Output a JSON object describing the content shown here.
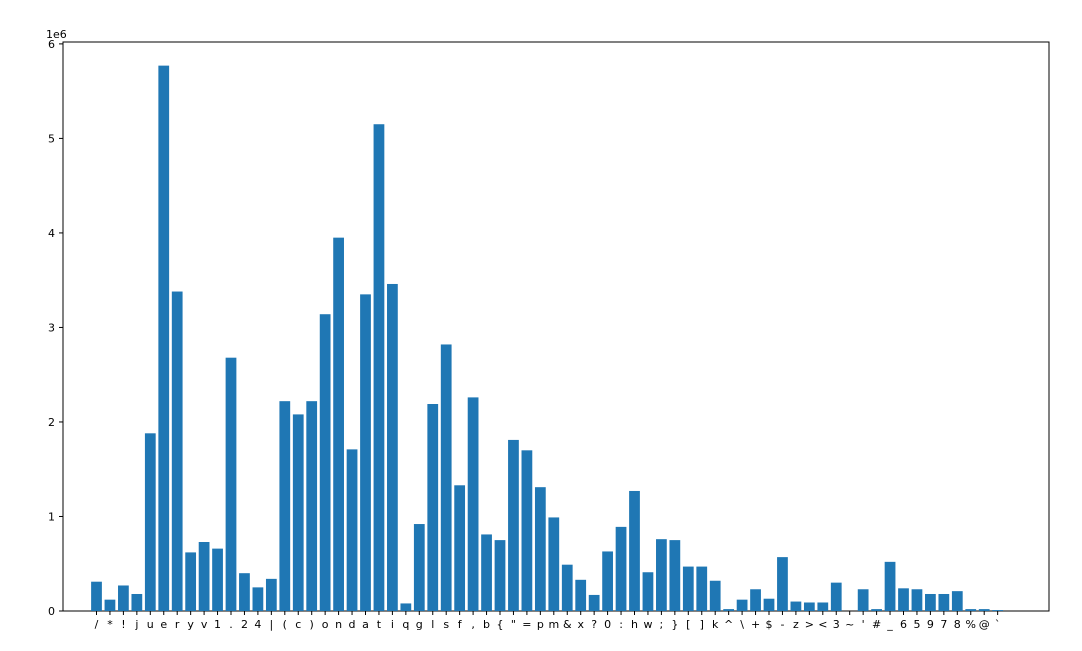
{
  "chart_data": {
    "type": "bar",
    "title": "",
    "xlabel": "",
    "ylabel": "",
    "y_scale_label": "1e6",
    "ylim": [
      0,
      6020000
    ],
    "yticks": [
      0,
      1000000,
      2000000,
      3000000,
      4000000,
      5000000,
      6000000
    ],
    "ytick_labels": [
      "0",
      "1",
      "2",
      "3",
      "4",
      "5",
      "6"
    ],
    "grid": false,
    "bar_color": "#1f77b4",
    "categories": [
      "/",
      "*",
      "!",
      "j",
      "u",
      "e",
      "r",
      "y",
      "v",
      "1",
      ".",
      "2",
      "4",
      "|",
      "(",
      "c",
      ")",
      "o",
      "n",
      "d",
      "a",
      "t",
      "i",
      "q",
      "g",
      "l",
      "s",
      "f",
      ",",
      "b",
      "{",
      "\"",
      "=",
      "p",
      "m",
      "&",
      "x",
      "?",
      "0",
      ":",
      "h",
      "w",
      ";",
      "}",
      "[",
      "]",
      "k",
      "^",
      "\\",
      "+",
      "$",
      "-",
      "z",
      ">",
      "<",
      "3",
      "~",
      "'",
      "#",
      "_",
      "6",
      "5",
      "9",
      "7",
      "8",
      "%",
      "@",
      "`"
    ],
    "values": [
      310000,
      120000,
      270000,
      180000,
      1880000,
      5770000,
      3380000,
      620000,
      730000,
      660000,
      2680000,
      400000,
      250000,
      340000,
      2220000,
      2080000,
      2220000,
      3140000,
      3950000,
      1710000,
      3350000,
      5150000,
      3460000,
      80000,
      920000,
      2190000,
      2820000,
      1330000,
      2260000,
      810000,
      750000,
      1810000,
      1700000,
      1310000,
      990000,
      490000,
      330000,
      170000,
      630000,
      890000,
      1270000,
      410000,
      760000,
      750000,
      470000,
      470000,
      320000,
      20000,
      120000,
      230000,
      130000,
      570000,
      100000,
      90000,
      90000,
      300000,
      0,
      230000,
      20000,
      520000,
      240000,
      230000,
      180000,
      180000,
      210000,
      20000,
      20000,
      10000
    ]
  }
}
